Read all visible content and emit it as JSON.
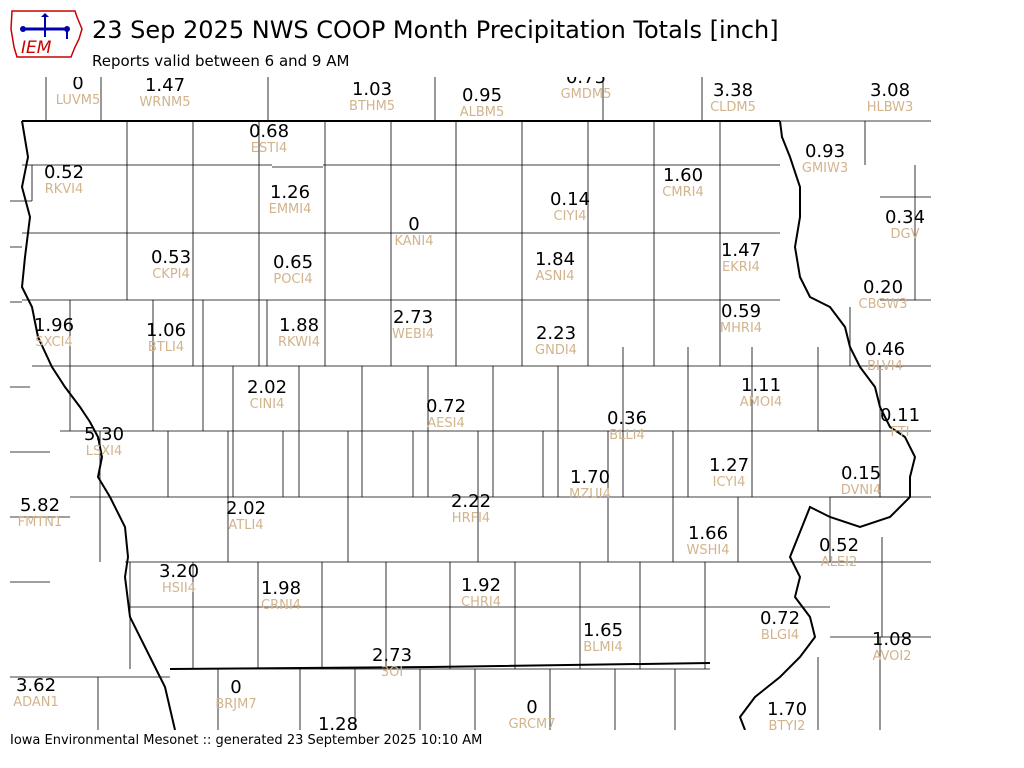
{
  "header": {
    "title": "23 Sep 2025 NWS COOP Month Precipitation Totals [inch]",
    "subtitle": "Reports valid between 6 and 9 AM",
    "logo_text": "IEM"
  },
  "footer": {
    "text": "Iowa Environmental Mesonet :: generated 23 September 2025 10:10 AM"
  },
  "colors": {
    "value_text": "#000000",
    "station_id_text": "#d2b48c",
    "logo_red": "#cc0000",
    "logo_blue": "#0000aa"
  },
  "stations": [
    {
      "id": "LUVM5",
      "value": "0"
    },
    {
      "id": "WRNM5",
      "value": "1.47"
    },
    {
      "id": "BTHM5",
      "value": "1.03"
    },
    {
      "id": "ALBM5",
      "value": "0.95"
    },
    {
      "id": "GMDM5",
      "value": "0.75"
    },
    {
      "id": "CLDM5",
      "value": "3.38"
    },
    {
      "id": "HLBW3",
      "value": "3.08"
    },
    {
      "id": "ESTI4",
      "value": "0.68"
    },
    {
      "id": "RKVI4",
      "value": "0.52"
    },
    {
      "id": "GMIW3",
      "value": "0.93"
    },
    {
      "id": "CMRI4",
      "value": "1.60"
    },
    {
      "id": "EMMI4",
      "value": "1.26"
    },
    {
      "id": "CIYI4",
      "value": "0.14"
    },
    {
      "id": "KANI4",
      "value": "0"
    },
    {
      "id": "DGV",
      "value": "0.34"
    },
    {
      "id": "CKPI4",
      "value": "0.53"
    },
    {
      "id": "POCI4",
      "value": "0.65"
    },
    {
      "id": "ASNI4",
      "value": "1.84"
    },
    {
      "id": "EKRI4",
      "value": "1.47"
    },
    {
      "id": "CBGW3",
      "value": "0.20"
    },
    {
      "id": "SXCI4",
      "value": "1.96"
    },
    {
      "id": "BTLI4",
      "value": "1.06"
    },
    {
      "id": "RKWI4",
      "value": "1.88"
    },
    {
      "id": "WEBI4",
      "value": "2.73"
    },
    {
      "id": "GNDI4",
      "value": "2.23"
    },
    {
      "id": "MHRI4",
      "value": "0.59"
    },
    {
      "id": "BLVI4",
      "value": "0.46"
    },
    {
      "id": "CINI4",
      "value": "2.02"
    },
    {
      "id": "AESI4",
      "value": "0.72"
    },
    {
      "id": "AMOI4",
      "value": "1.11"
    },
    {
      "id": "BLLI4",
      "value": "0.36"
    },
    {
      "id": "FTI",
      "value": "0.11"
    },
    {
      "id": "LSXI4",
      "value": "5.30"
    },
    {
      "id": "ICYI4",
      "value": "1.27"
    },
    {
      "id": "MZUI4",
      "value": "1.70"
    },
    {
      "id": "DVNI4",
      "value": "0.15"
    },
    {
      "id": "FMTN1",
      "value": "5.82"
    },
    {
      "id": "ATLI4",
      "value": "2.02"
    },
    {
      "id": "HRFI4",
      "value": "2.22"
    },
    {
      "id": "WSHI4",
      "value": "1.66"
    },
    {
      "id": "ALEI2",
      "value": "0.52"
    },
    {
      "id": "HSII4",
      "value": "3.20"
    },
    {
      "id": "CRNI4",
      "value": "1.98"
    },
    {
      "id": "CHRI4",
      "value": "1.92"
    },
    {
      "id": "BLMI4",
      "value": "1.65"
    },
    {
      "id": "BLGI4",
      "value": "0.72"
    },
    {
      "id": "AVOI2",
      "value": "1.08"
    },
    {
      "id": "3OI",
      "value": "2.73"
    },
    {
      "id": "ADAN1",
      "value": "3.62"
    },
    {
      "id": "BRJM7",
      "value": "0"
    },
    {
      "id": "GRCM7",
      "value": "0"
    },
    {
      "id": "BTYI2",
      "value": "1.70"
    },
    {
      "id": "",
      "value": "1.28"
    }
  ]
}
